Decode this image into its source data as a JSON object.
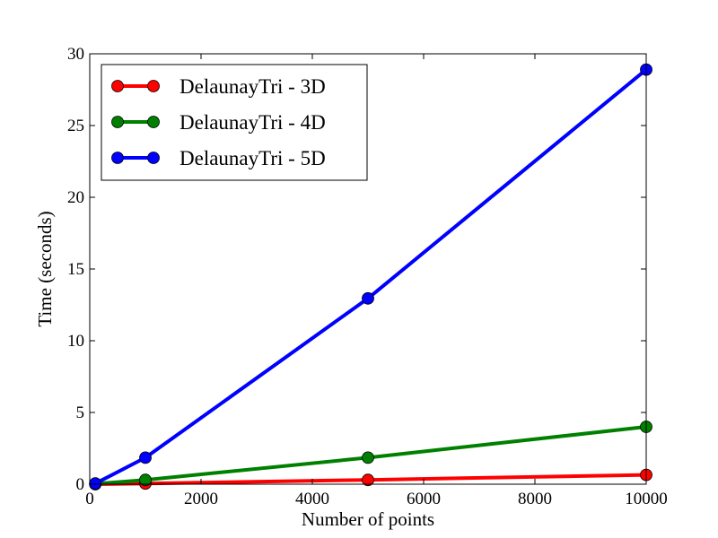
{
  "chart_data": {
    "type": "line",
    "xlabel": "Number of points",
    "ylabel": "Time (seconds)",
    "xlim": [
      0,
      10000
    ],
    "ylim": [
      0,
      30
    ],
    "xticks": [
      0,
      2000,
      4000,
      6000,
      8000,
      10000
    ],
    "yticks": [
      0,
      5,
      10,
      15,
      20,
      25,
      30
    ],
    "grid": false,
    "legend_position": "top-left",
    "series": [
      {
        "name": "DelaunayTri - 3D",
        "color": "#ff0000",
        "x": [
          100,
          1000,
          5000,
          10000
        ],
        "y": [
          0.0,
          0.05,
          0.3,
          0.65
        ]
      },
      {
        "name": "DelaunayTri - 4D",
        "color": "#008000",
        "x": [
          100,
          1000,
          5000,
          10000
        ],
        "y": [
          0.02,
          0.3,
          1.85,
          4.0
        ]
      },
      {
        "name": "DelaunayTri - 5D",
        "color": "#0000ff",
        "x": [
          100,
          1000,
          5000,
          10000
        ],
        "y": [
          0.05,
          1.85,
          12.95,
          28.9
        ]
      }
    ]
  }
}
